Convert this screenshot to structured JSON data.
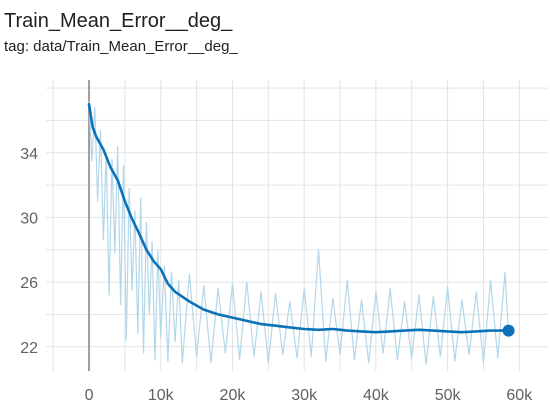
{
  "card": {
    "title": "Train_Mean_Error__deg_",
    "tag": "tag: data/Train_Mean_Error__deg_"
  },
  "colors": {
    "smoothed_line": "#0b72b8",
    "raw_line": "#b3d7ea",
    "grid": "#e3e3e3",
    "zero_axis": "#9e9e9e",
    "tick_text": "#616161"
  },
  "chart_data": {
    "type": "line",
    "title": "Train_Mean_Error__deg_",
    "xlabel": "",
    "ylabel": "",
    "xlim": [
      -6000,
      64000
    ],
    "ylim": [
      20.5,
      38.5
    ],
    "x_ticks": [
      0,
      10000,
      20000,
      30000,
      40000,
      50000,
      60000
    ],
    "x_tick_labels": [
      "0",
      "10k",
      "20k",
      "30k",
      "40k",
      "50k",
      "60k"
    ],
    "y_ticks": [
      22,
      26,
      30,
      34
    ],
    "y_tick_labels": [
      "22",
      "26",
      "30",
      "34"
    ],
    "grid": true,
    "legend": "none",
    "series": [
      {
        "role": "smoothed",
        "x": [
          0,
          500,
          1000,
          2000,
          3000,
          4000,
          5000,
          6000,
          7000,
          8000,
          9000,
          10000,
          11000,
          12000,
          14000,
          16000,
          18000,
          20000,
          22000,
          24000,
          26000,
          28000,
          30000,
          32000,
          34000,
          36000,
          38000,
          40000,
          42000,
          44000,
          46000,
          48000,
          50000,
          52000,
          54000,
          56000,
          58500
        ],
        "y": [
          37.0,
          35.6,
          35.0,
          34.2,
          33.1,
          32.3,
          31.0,
          29.9,
          29.0,
          28.0,
          27.3,
          26.8,
          25.9,
          25.4,
          24.8,
          24.3,
          24.0,
          23.8,
          23.6,
          23.4,
          23.3,
          23.2,
          23.1,
          23.05,
          23.1,
          23.0,
          22.95,
          22.9,
          22.95,
          23.0,
          23.05,
          23.0,
          22.95,
          22.9,
          22.95,
          23.0,
          23.0
        ]
      },
      {
        "role": "raw",
        "x": [
          0,
          400,
          800,
          1200,
          1600,
          2000,
          2400,
          2800,
          3200,
          3600,
          4000,
          4400,
          4800,
          5200,
          5600,
          6000,
          6400,
          6800,
          7200,
          7600,
          8000,
          8400,
          8800,
          9200,
          9600,
          10000,
          10500,
          11000,
          11500,
          12000,
          12500,
          13000,
          14000,
          15000,
          16000,
          17000,
          18000,
          19000,
          20000,
          21000,
          22000,
          23000,
          24000,
          25000,
          26000,
          27000,
          28000,
          29000,
          30000,
          31000,
          32000,
          33000,
          34000,
          35000,
          36000,
          37000,
          38000,
          39000,
          40000,
          41000,
          42000,
          43000,
          44000,
          45000,
          46000,
          47000,
          48000,
          49000,
          50000,
          51000,
          52000,
          53000,
          54000,
          55000,
          56000,
          57000,
          58000,
          58500
        ],
        "y": [
          37.2,
          33.5,
          36.8,
          31.0,
          35.4,
          28.6,
          34.0,
          25.2,
          33.6,
          27.8,
          34.4,
          24.6,
          33.2,
          22.4,
          31.8,
          25.5,
          30.4,
          22.8,
          31.2,
          21.6,
          29.7,
          24.0,
          28.5,
          21.2,
          28.0,
          22.6,
          27.0,
          21.1,
          26.6,
          22.3,
          26.1,
          21.0,
          26.5,
          21.4,
          25.8,
          21.0,
          25.6,
          21.6,
          25.9,
          21.2,
          26.0,
          21.4,
          25.4,
          21.0,
          25.3,
          21.5,
          24.8,
          21.3,
          25.6,
          21.4,
          28.0,
          21.1,
          25.0,
          21.5,
          26.1,
          21.2,
          24.9,
          21.0,
          25.4,
          21.6,
          25.6,
          21.2,
          24.8,
          21.3,
          25.2,
          20.9,
          25.1,
          21.4,
          25.7,
          21.1,
          24.9,
          21.5,
          25.4,
          21.0,
          26.1,
          21.3,
          26.6,
          22.7
        ]
      }
    ],
    "end_marker": {
      "x": 58500,
      "y": 23.0
    }
  }
}
